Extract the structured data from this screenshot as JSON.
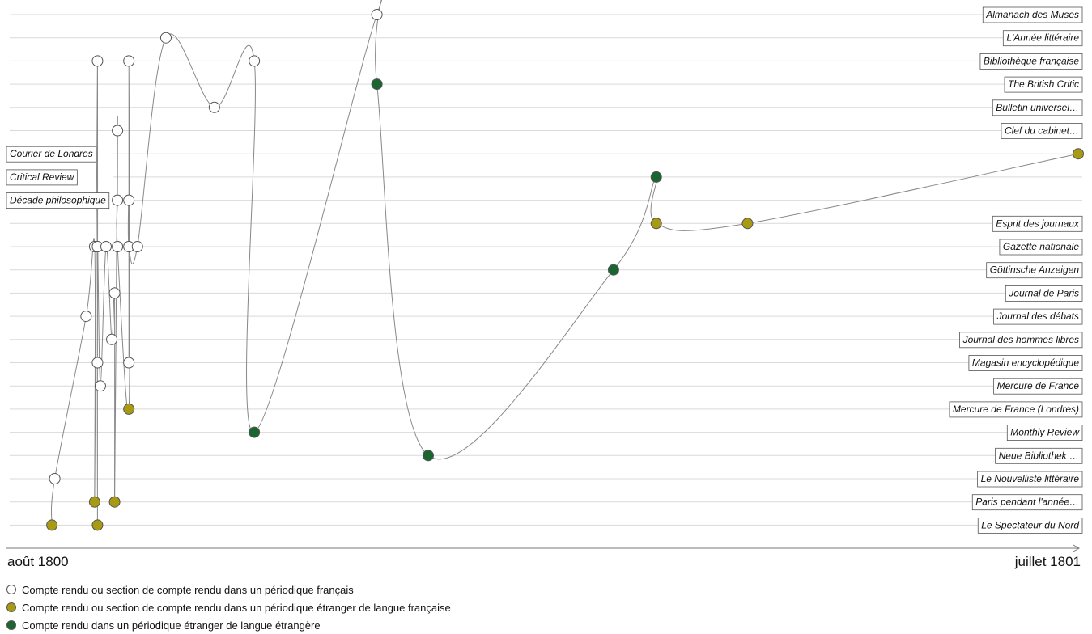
{
  "chart_data": {
    "type": "scatter",
    "x_start_label": "août 1800",
    "x_end_label": "juillet 1801",
    "x_domain": [
      "1800-08-01",
      "1801-07-31"
    ],
    "periodicals": [
      "Almanach des Muses",
      "L'Année littéraire",
      "Bibliothèque française",
      "The British Critic",
      "Bulletin universel…",
      "Clef du cabinet…",
      "Courier de Londres",
      "Critical Review",
      "Décade philosophique",
      "Esprit des journaux",
      "Gazette nationale",
      "Göttinsche Anzeigen",
      "Journal de Paris",
      "Journal des débats",
      "Journal des hommes libres",
      "Magasin encyclopédique",
      "Mercure de France",
      "Mercure de France (Londres)",
      "Monthly Review",
      "Neue Bibliothek …",
      "Le Nouvelliste littéraire",
      "Paris pendant l'année…",
      "Le Spectateur du Nord"
    ],
    "left_label_periodicals": [
      "Courier de Londres",
      "Critical Review",
      "Décade philosophique"
    ],
    "categories": {
      "fr": {
        "label": "Compte rendu ou section de compte rendu dans un périodique français",
        "color": "#ffffff"
      },
      "fr_abroad": {
        "label": "Compte rendu ou section de compte rendu dans un périodique étranger de langue française",
        "color": "#a89a12"
      },
      "foreign": {
        "label": "Compte rendu dans un périodique étranger de langue étrangère",
        "color": "#1b6530"
      }
    },
    "points": [
      {
        "date": "1800-08-05",
        "periodical": "Le Spectateur du Nord",
        "category": "fr_abroad"
      },
      {
        "date": "1800-08-06",
        "periodical": "Le Nouvelliste littéraire",
        "category": "fr"
      },
      {
        "date": "1800-08-17",
        "periodical": "Journal des débats",
        "category": "fr"
      },
      {
        "date": "1800-08-20",
        "periodical": "Gazette nationale",
        "category": "fr"
      },
      {
        "date": "1800-08-20",
        "periodical": "Paris pendant l'année…",
        "category": "fr_abroad"
      },
      {
        "date": "1800-08-21",
        "periodical": "Bibliothèque française",
        "category": "fr"
      },
      {
        "date": "1800-08-21",
        "periodical": "Magasin encyclopédique",
        "category": "fr"
      },
      {
        "date": "1800-08-21",
        "periodical": "Le Spectateur du Nord",
        "category": "fr_abroad"
      },
      {
        "date": "1800-08-21",
        "periodical": "Gazette nationale",
        "category": "fr"
      },
      {
        "date": "1800-08-22",
        "periodical": "Mercure de France",
        "category": "fr"
      },
      {
        "date": "1800-08-24",
        "periodical": "Gazette nationale",
        "category": "fr"
      },
      {
        "date": "1800-08-26",
        "periodical": "Journal des hommes libres",
        "category": "fr"
      },
      {
        "date": "1800-08-27",
        "periodical": "Journal de Paris",
        "category": "fr"
      },
      {
        "date": "1800-08-27",
        "periodical": "Paris pendant l'année…",
        "category": "fr_abroad"
      },
      {
        "date": "1800-08-28",
        "periodical": "Clef du cabinet…",
        "category": "fr"
      },
      {
        "date": "1800-08-28",
        "periodical": "Décade philosophique",
        "category": "fr"
      },
      {
        "date": "1800-08-28",
        "periodical": "Gazette nationale",
        "category": "fr"
      },
      {
        "date": "1800-09-01",
        "periodical": "Mercure de France (Londres)",
        "category": "fr_abroad"
      },
      {
        "date": "1800-09-01",
        "periodical": "Bibliothèque française",
        "category": "fr"
      },
      {
        "date": "1800-09-01",
        "periodical": "Magasin encyclopédique",
        "category": "fr"
      },
      {
        "date": "1800-09-01",
        "periodical": "Décade philosophique",
        "category": "fr"
      },
      {
        "date": "1800-09-01",
        "periodical": "Gazette nationale",
        "category": "fr"
      },
      {
        "date": "1800-09-04",
        "periodical": "Gazette nationale",
        "category": "fr"
      },
      {
        "date": "1800-09-14",
        "periodical": "L'Année littéraire",
        "category": "fr"
      },
      {
        "date": "1800-10-01",
        "periodical": "Bulletin universel…",
        "category": "fr"
      },
      {
        "date": "1800-10-15",
        "periodical": "Bibliothèque française",
        "category": "fr"
      },
      {
        "date": "1800-10-15",
        "periodical": "Monthly Review",
        "category": "foreign"
      },
      {
        "date": "1800-11-27",
        "periodical": "Almanach des Muses",
        "category": "fr"
      },
      {
        "date": "1800-11-27",
        "periodical": "The British Critic",
        "category": "foreign"
      },
      {
        "date": "1800-12-15",
        "periodical": "Neue Bibliothek …",
        "category": "foreign"
      },
      {
        "date": "1801-02-18",
        "periodical": "Göttinsche Anzeigen",
        "category": "foreign"
      },
      {
        "date": "1801-03-05",
        "periodical": "Critical Review",
        "category": "foreign"
      },
      {
        "date": "1801-03-05",
        "periodical": "Esprit des journaux",
        "category": "fr_abroad"
      },
      {
        "date": "1801-04-06",
        "periodical": "Esprit des journaux",
        "category": "fr_abroad"
      },
      {
        "date": "1801-07-31",
        "periodical": "Courier de Londres",
        "category": "fr_abroad"
      }
    ]
  }
}
